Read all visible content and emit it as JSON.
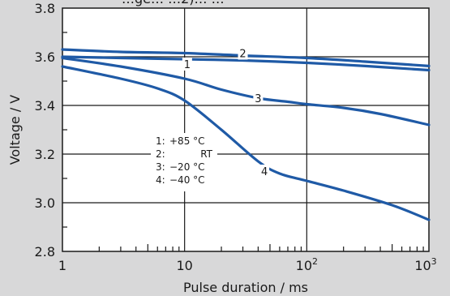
{
  "chart_data": {
    "type": "line",
    "title": "",
    "xlabel": "Pulse duration / ms",
    "ylabel": "Voltage / V",
    "x_scale": "log",
    "xlim": [
      1,
      1000
    ],
    "ylim": [
      2.8,
      3.8
    ],
    "x_ticks": [
      {
        "value": 1,
        "base": "1",
        "exp": ""
      },
      {
        "value": 10,
        "base": "10",
        "exp": ""
      },
      {
        "value": 100,
        "base": "10",
        "exp": "2"
      },
      {
        "value": 1000,
        "base": "10",
        "exp": "3"
      }
    ],
    "y_ticks": [
      2.8,
      3.0,
      3.2,
      3.4,
      3.6,
      3.8
    ],
    "y_tick_labels": [
      "2.8",
      "3.0",
      "3.2",
      "3.4",
      "3.6",
      "3.8"
    ],
    "grid": true,
    "series": [
      {
        "name": "1",
        "x": [
          1,
          3,
          10,
          30,
          100,
          300,
          1000
        ],
        "values": [
          3.6,
          3.595,
          3.59,
          3.585,
          3.575,
          3.562,
          3.545
        ]
      },
      {
        "name": "2",
        "x": [
          1,
          3,
          10,
          30,
          100,
          300,
          1000
        ],
        "values": [
          3.63,
          3.62,
          3.615,
          3.605,
          3.595,
          3.58,
          3.562
        ]
      },
      {
        "name": "3",
        "x": [
          1,
          3,
          10,
          20,
          40,
          70,
          100,
          200,
          400,
          1000
        ],
        "values": [
          3.595,
          3.56,
          3.51,
          3.465,
          3.43,
          3.415,
          3.405,
          3.39,
          3.365,
          3.32
        ]
      },
      {
        "name": "4",
        "x": [
          1,
          3,
          6,
          10,
          20,
          40,
          60,
          100,
          200,
          500,
          1000
        ],
        "values": [
          3.56,
          3.51,
          3.47,
          3.42,
          3.3,
          3.17,
          3.12,
          3.09,
          3.05,
          2.99,
          2.93
        ]
      }
    ],
    "curve_labels": [
      {
        "text": "1",
        "x": 10.5,
        "y": 3.57
      },
      {
        "text": "2",
        "x": 30,
        "y": 3.615
      },
      {
        "text": "3",
        "x": 40,
        "y": 3.43
      },
      {
        "text": "4",
        "x": 45,
        "y": 3.13
      }
    ],
    "legend": {
      "placement": "center-left",
      "entries": [
        {
          "key": "1:",
          "text": "+85 °C"
        },
        {
          "key": "2:",
          "text": "RT"
        },
        {
          "key": "3:",
          "text": "−20 °C"
        },
        {
          "key": "4:",
          "text": "−40 °C"
        }
      ]
    },
    "top_partial_text": "…ge…  …2)…  …",
    "colors": {
      "line": "#1f5aa6",
      "axis": "#1a1a1a",
      "grid": "#1a1a1a",
      "legend_bg": "#ffffff"
    }
  }
}
